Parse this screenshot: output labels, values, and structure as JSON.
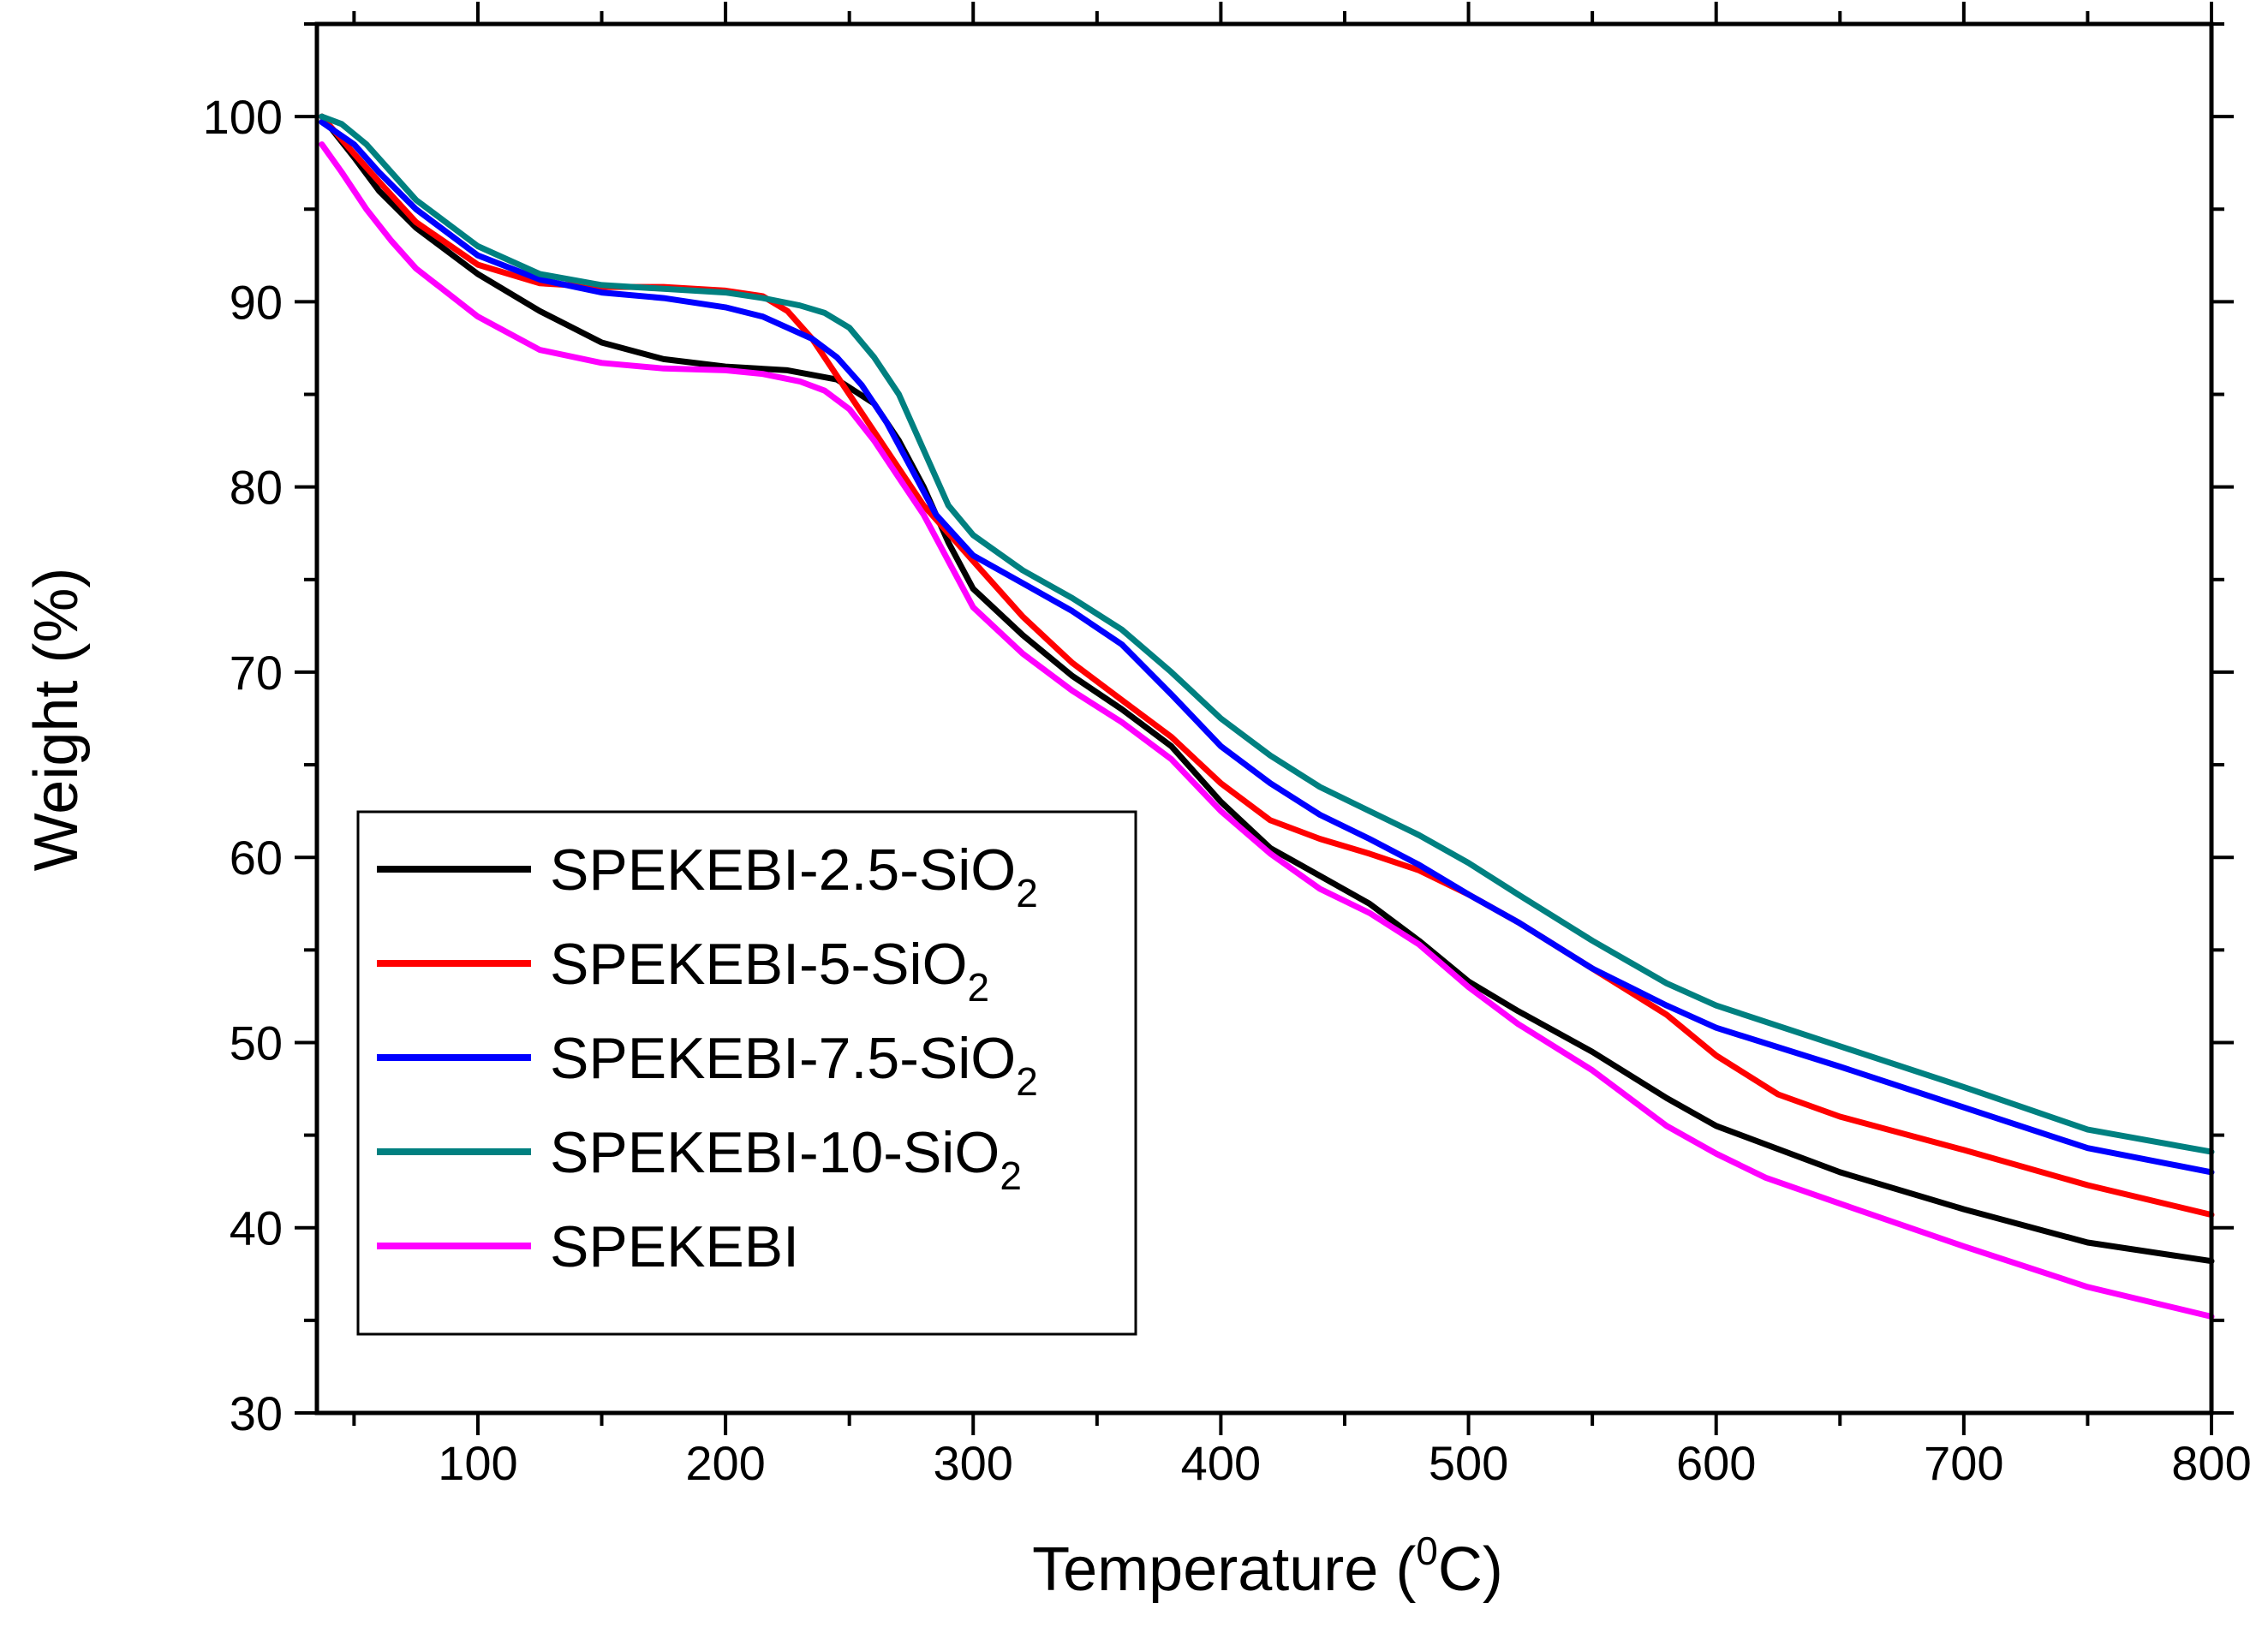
{
  "chart_data": {
    "type": "line",
    "title": "",
    "xlabel": "Temperature (",
    "xlabel_superscript": "0",
    "xlabel_tail": "C)",
    "ylabel": "Weight  (%)",
    "xlim": [
      35,
      800
    ],
    "ylim": [
      30,
      105
    ],
    "x_ticks": [
      "100",
      "200",
      "300",
      "400",
      "500",
      "600",
      "700",
      "800"
    ],
    "y_ticks": [
      "30",
      "40",
      "50",
      "60",
      "70",
      "80",
      "90",
      "100"
    ],
    "grid": false,
    "legend_position": "bottom-left",
    "series": [
      {
        "name": "SPEKEBI-2.5-SiO",
        "subscript": "2",
        "color": "#000000",
        "x": [
          37,
          50,
          60,
          75,
          100,
          125,
          150,
          175,
          200,
          225,
          245,
          260,
          270,
          280,
          290,
          300,
          320,
          340,
          360,
          380,
          400,
          420,
          440,
          460,
          480,
          500,
          520,
          550,
          580,
          600,
          650,
          700,
          750,
          800
        ],
        "y": [
          100,
          97.8,
          96,
          94,
          91.5,
          89.5,
          87.8,
          86.9,
          86.5,
          86.3,
          85.8,
          84.5,
          82.5,
          80,
          77,
          74.5,
          72,
          69.8,
          68,
          66,
          63,
          60.5,
          59,
          57.5,
          55.5,
          53.3,
          51.7,
          49.5,
          47,
          45.5,
          43,
          41,
          39.2,
          38.2
        ]
      },
      {
        "name": "SPEKEBI-5-SiO",
        "subscript": "2",
        "color": "#ff0000",
        "x": [
          37,
          50,
          60,
          75,
          100,
          125,
          150,
          175,
          200,
          215,
          225,
          235,
          245,
          255,
          265,
          280,
          290,
          300,
          320,
          340,
          360,
          380,
          400,
          420,
          440,
          460,
          480,
          500,
          520,
          550,
          580,
          600,
          625,
          650,
          700,
          750,
          800
        ],
        "y": [
          100,
          98,
          96.5,
          94.3,
          92,
          91,
          90.8,
          90.8,
          90.6,
          90.3,
          89.5,
          88,
          86,
          84,
          82,
          79,
          77.5,
          76,
          73,
          70.5,
          68.5,
          66.5,
          64,
          62,
          61,
          60.2,
          59.3,
          58,
          56.5,
          54,
          51.5,
          49.3,
          47.2,
          46,
          44.2,
          42.3,
          40.7
        ]
      },
      {
        "name": "SPEKEBI-7.5-SiO",
        "subscript": "2",
        "color": "#0000ff",
        "x": [
          37,
          50,
          60,
          75,
          100,
          125,
          150,
          175,
          200,
          215,
          225,
          235,
          245,
          255,
          265,
          275,
          285,
          300,
          320,
          340,
          360,
          380,
          400,
          420,
          440,
          460,
          480,
          500,
          520,
          550,
          580,
          600,
          650,
          700,
          750,
          800
        ],
        "y": [
          99.7,
          98.5,
          97,
          95,
          92.5,
          91.2,
          90.5,
          90.2,
          89.7,
          89.2,
          88.6,
          88,
          87,
          85.5,
          83.5,
          81,
          78.5,
          76.3,
          74.8,
          73.3,
          71.5,
          68.8,
          66,
          64,
          62.3,
          61,
          59.6,
          58,
          56.5,
          54,
          52,
          50.8,
          48.7,
          46.5,
          44.3,
          43
        ]
      },
      {
        "name": "SPEKEBI-10-SiO",
        "subscript": "2",
        "color": "#008080",
        "x": [
          37,
          45,
          55,
          65,
          75,
          100,
          125,
          150,
          175,
          200,
          215,
          230,
          240,
          250,
          260,
          270,
          280,
          285,
          290,
          300,
          320,
          340,
          360,
          380,
          400,
          420,
          440,
          460,
          480,
          500,
          520,
          550,
          580,
          600,
          650,
          700,
          750,
          800
        ],
        "y": [
          100,
          99.6,
          98.5,
          97,
          95.5,
          93,
          91.5,
          90.9,
          90.7,
          90.5,
          90.2,
          89.8,
          89.4,
          88.6,
          87,
          85,
          82,
          80.5,
          79,
          77.4,
          75.5,
          74,
          72.3,
          70,
          67.5,
          65.5,
          63.8,
          62.5,
          61.2,
          59.7,
          58,
          55.5,
          53.2,
          52,
          49.8,
          47.6,
          45.3,
          44.1
        ]
      },
      {
        "name": "SPEKEBI",
        "subscript": "",
        "color": "#ff00ff",
        "x": [
          37,
          45,
          55,
          65,
          75,
          100,
          125,
          150,
          175,
          200,
          215,
          230,
          240,
          250,
          260,
          270,
          280,
          290,
          300,
          320,
          340,
          360,
          380,
          400,
          420,
          440,
          460,
          480,
          500,
          520,
          550,
          580,
          600,
          620,
          650,
          700,
          750,
          800
        ],
        "y": [
          98.5,
          97,
          95,
          93.3,
          91.8,
          89.2,
          87.4,
          86.7,
          86.4,
          86.3,
          86.1,
          85.7,
          85.2,
          84.2,
          82.5,
          80.5,
          78.5,
          76,
          73.5,
          71,
          69,
          67.3,
          65.3,
          62.5,
          60.2,
          58.3,
          57,
          55.3,
          53,
          51,
          48.5,
          45.5,
          44,
          42.7,
          41.3,
          39,
          36.8,
          35.2
        ]
      }
    ]
  }
}
